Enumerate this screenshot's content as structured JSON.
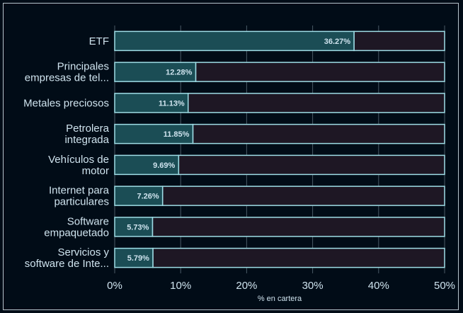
{
  "chart_data": {
    "type": "bar",
    "orientation": "horizontal",
    "categories": [
      [
        "ETF"
      ],
      [
        "Principales",
        "empresas de tel..."
      ],
      [
        "Metales preciosos"
      ],
      [
        "Petrolera",
        "integrada"
      ],
      [
        "Vehículos de",
        "motor"
      ],
      [
        "Internet para",
        "particulares"
      ],
      [
        "Software",
        "empaquetado"
      ],
      [
        "Servicios y",
        "software de Inte..."
      ]
    ],
    "values": [
      36.27,
      12.28,
      11.13,
      11.85,
      9.69,
      7.26,
      5.73,
      5.79
    ],
    "value_labels": [
      "36.27%",
      "12.28%",
      "11.13%",
      "11.85%",
      "9.69%",
      "7.26%",
      "5.73%",
      "5.79%"
    ],
    "xlim": [
      0,
      50
    ],
    "xticks": [
      0,
      10,
      20,
      30,
      40,
      50
    ],
    "xtick_labels": [
      "0%",
      "10%",
      "20%",
      "30%",
      "40%",
      "50%"
    ],
    "xlabel": "% en cartera",
    "grid": true,
    "colors": {
      "background": "#010c17",
      "bar_fill": "#1b4d55",
      "bar_remainder": "#1e1724",
      "bar_stroke": "#9fdde6",
      "grid": "#4a5a66",
      "text": "#cfe3ee"
    }
  }
}
